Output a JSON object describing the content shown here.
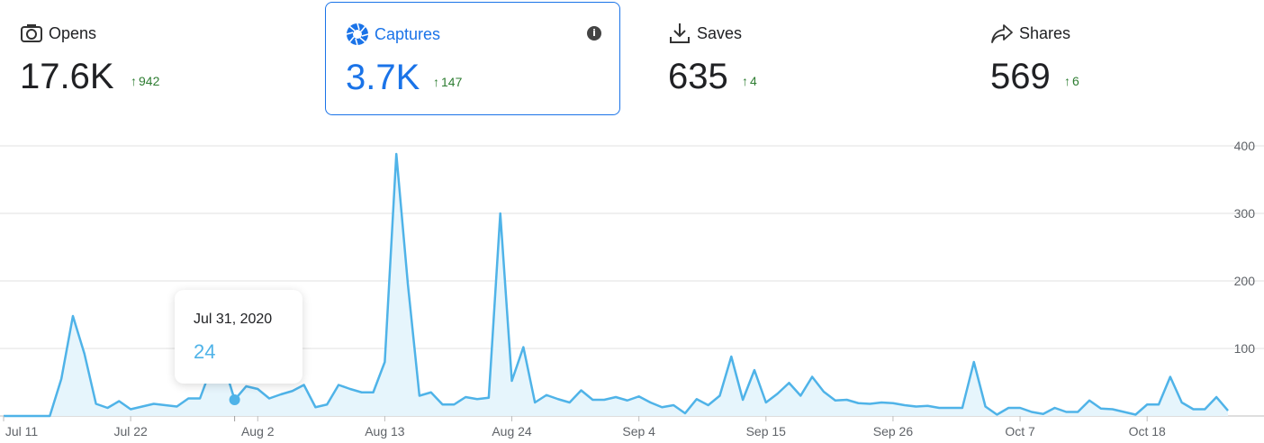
{
  "metrics": [
    {
      "label": "Opens",
      "value": "17.6K",
      "delta": "942",
      "icon": "camera-icon",
      "selected": false
    },
    {
      "label": "Captures",
      "value": "3.7K",
      "delta": "147",
      "icon": "shutter-icon",
      "selected": true
    },
    {
      "label": "Saves",
      "value": "635",
      "delta": "4",
      "icon": "download-icon",
      "selected": false
    },
    {
      "label": "Shares",
      "value": "569",
      "delta": "6",
      "icon": "share-arrow-icon",
      "selected": false
    }
  ],
  "info_glyph": "i",
  "colors": {
    "accent": "#1a73e8",
    "line": "#4fb3e8",
    "fill": "#e6f5fc",
    "positive": "#2e7d32",
    "grid": "#e0e0e0"
  },
  "tooltip": {
    "date": "Jul 31, 2020",
    "value": "24"
  },
  "chart_data": {
    "type": "area",
    "y_ticks": [
      "100",
      "200",
      "300",
      "400"
    ],
    "ylim": [
      0,
      400
    ],
    "x_ticks": [
      "Jul 11",
      "Jul 22",
      "Aug 2",
      "Aug 13",
      "Aug 24",
      "Sep 4",
      "Sep 15",
      "Sep 26",
      "Oct 7",
      "Oct 18"
    ],
    "highlight_index": 20,
    "grid": true,
    "values": [
      0,
      0,
      0,
      0,
      0,
      55,
      148,
      92,
      18,
      12,
      22,
      10,
      14,
      18,
      16,
      14,
      26,
      26,
      72,
      80,
      24,
      44,
      40,
      26,
      32,
      37,
      46,
      13,
      17,
      46,
      40,
      35,
      35,
      80,
      388,
      195,
      30,
      35,
      17,
      17,
      28,
      25,
      27,
      300,
      52,
      102,
      20,
      31,
      25,
      20,
      38,
      24,
      24,
      28,
      23,
      29,
      20,
      13,
      16,
      4,
      25,
      16,
      30,
      88,
      24,
      68,
      20,
      33,
      49,
      30,
      58,
      36,
      23,
      24,
      19,
      18,
      20,
      19,
      16,
      14,
      15,
      12,
      12,
      12,
      80,
      14,
      2,
      12,
      12,
      6,
      3,
      12,
      6,
      6,
      23,
      11,
      10,
      6,
      2,
      17,
      17,
      58,
      20,
      10,
      10,
      28,
      8
    ]
  }
}
